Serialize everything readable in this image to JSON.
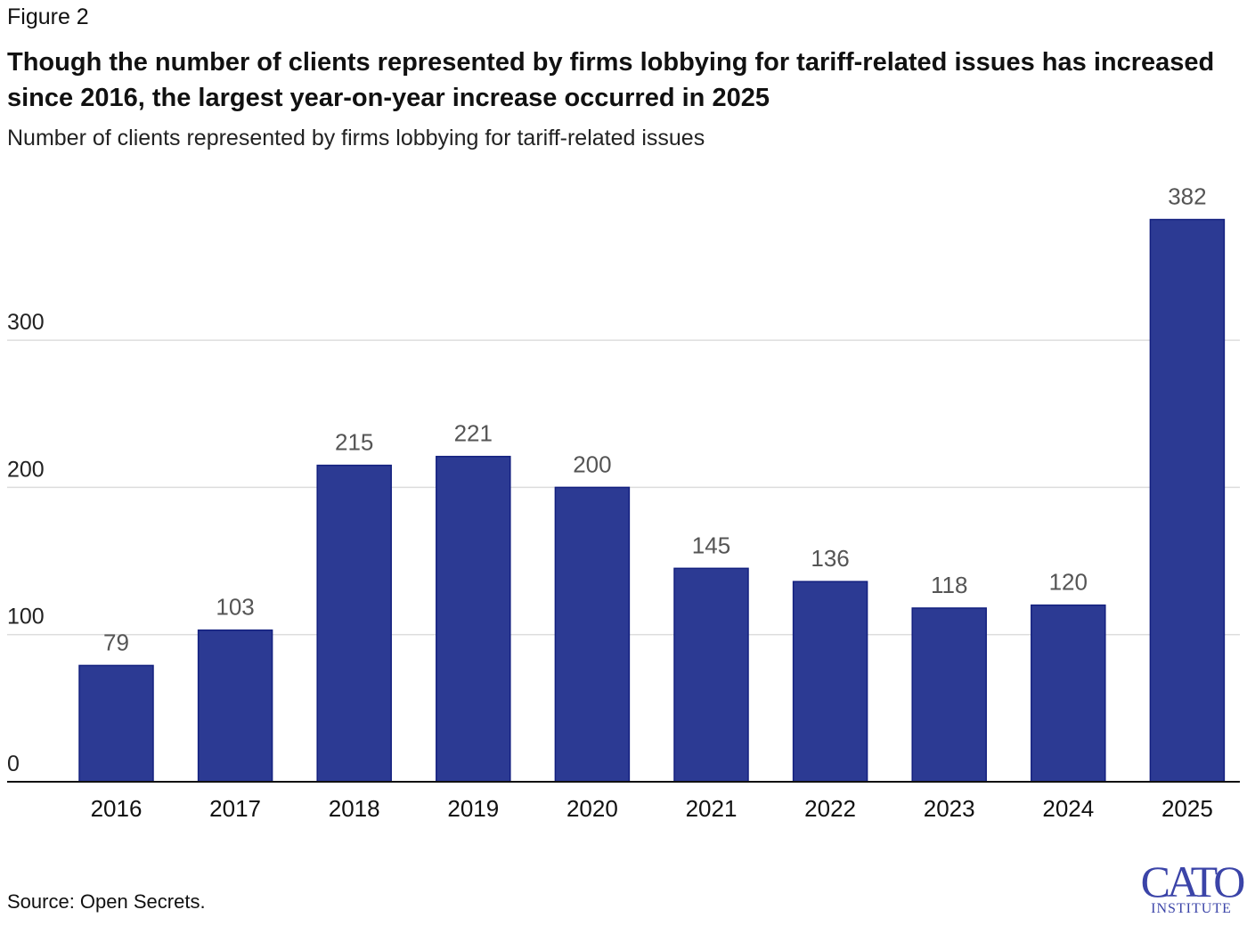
{
  "figure_label": "Figure 2",
  "title": "Though the number of clients represented by firms lobbying for tariff-related issues has increased since 2016, the largest year-on-year increase occurred in 2025",
  "subtitle": "Number of clients represented by firms lobbying for tariff-related issues",
  "source": "Source: Open Secrets.",
  "logo": {
    "line1": "CATO",
    "line2": "INSTITUTE"
  },
  "colors": {
    "bar": "#2c3a93",
    "bar_edge": "#13207f",
    "label": "#555555",
    "grid": "#dddddd"
  },
  "chart_data": {
    "type": "bar",
    "categories": [
      "2016",
      "2017",
      "2018",
      "2019",
      "2020",
      "2021",
      "2022",
      "2023",
      "2024",
      "2025"
    ],
    "values": [
      79,
      103,
      215,
      221,
      200,
      145,
      136,
      118,
      120,
      382
    ],
    "ylim": [
      0,
      382
    ],
    "yticks": [
      0,
      100,
      200,
      300
    ],
    "grid": true,
    "data_labels": true,
    "xlabel": "",
    "ylabel": ""
  }
}
